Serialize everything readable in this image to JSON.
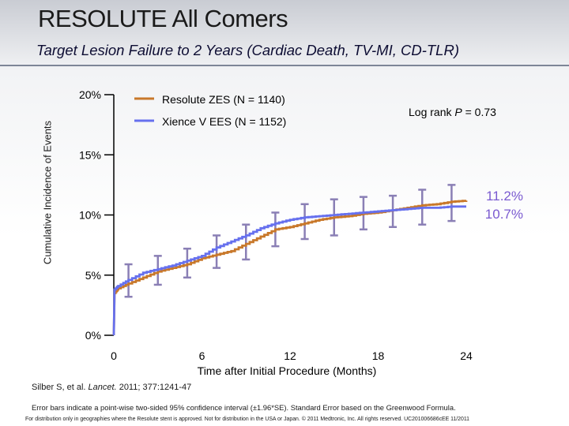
{
  "slide": {
    "title": "RESOLUTE All Comers",
    "subtitle": "Target Lesion Failure to 2 Years (Cardiac Death, TV-MI, CD-TLR)"
  },
  "chart_data": {
    "type": "line",
    "title": "Target Lesion Failure to 2 Years (Cardiac Death, TV-MI, CD-TLR)",
    "xlabel": "Time after Initial Procedure (Months)",
    "ylabel": "Cumulative Incidence of Events",
    "xlim": [
      0,
      24
    ],
    "ylim": [
      0,
      20
    ],
    "xticks": [
      0,
      6,
      12,
      18,
      24
    ],
    "xtick_labels": [
      "0",
      "6",
      "12",
      "18",
      "24"
    ],
    "yticks": [
      0,
      5,
      10,
      15,
      20
    ],
    "ytick_labels": [
      "0%",
      "5%",
      "10%",
      "15%",
      "20%"
    ],
    "grid": false,
    "legend_position": "top-left",
    "series": [
      {
        "name": "Resolute ZES (N = 1140)",
        "color": "#c8782a",
        "x": [
          0,
          0.05,
          0.3,
          1,
          2,
          3,
          4,
          5,
          6,
          7,
          8,
          9,
          10,
          11,
          12,
          13,
          14,
          15,
          16,
          17,
          18,
          19,
          20,
          21,
          22,
          23,
          24
        ],
        "values": [
          0,
          3.5,
          3.9,
          4.3,
          4.8,
          5.3,
          5.6,
          5.9,
          6.4,
          6.7,
          7.0,
          7.6,
          8.2,
          8.8,
          9.0,
          9.3,
          9.6,
          9.8,
          9.9,
          10.1,
          10.2,
          10.4,
          10.6,
          10.8,
          10.9,
          11.1,
          11.2
        ]
      },
      {
        "name": "Xience V EES (N = 1152)",
        "color": "#6670ee",
        "x": [
          0,
          0.05,
          0.3,
          1,
          2,
          3,
          4,
          5,
          6,
          7,
          8,
          9,
          10,
          11,
          12,
          13,
          14,
          15,
          16,
          17,
          18,
          19,
          20,
          21,
          22,
          23,
          24
        ],
        "values": [
          0,
          3.8,
          4.1,
          4.6,
          5.2,
          5.5,
          5.8,
          6.2,
          6.6,
          7.3,
          7.8,
          8.3,
          8.9,
          9.3,
          9.6,
          9.8,
          9.9,
          10.0,
          10.1,
          10.2,
          10.3,
          10.4,
          10.5,
          10.6,
          10.6,
          10.7,
          10.7
        ]
      }
    ],
    "error_bars": {
      "color": "#8a7fb5",
      "points": [
        {
          "x": 1,
          "low": 3.2,
          "high": 5.9
        },
        {
          "x": 3,
          "low": 4.2,
          "high": 6.6
        },
        {
          "x": 5,
          "low": 4.8,
          "high": 7.2
        },
        {
          "x": 7,
          "low": 5.6,
          "high": 8.3
        },
        {
          "x": 9,
          "low": 6.3,
          "high": 9.2
        },
        {
          "x": 11,
          "low": 7.4,
          "high": 10.2
        },
        {
          "x": 13,
          "low": 8.0,
          "high": 10.9
        },
        {
          "x": 15,
          "low": 8.3,
          "high": 11.3
        },
        {
          "x": 17,
          "low": 8.8,
          "high": 11.5
        },
        {
          "x": 19,
          "low": 9.0,
          "high": 11.6
        },
        {
          "x": 21,
          "low": 9.2,
          "high": 12.1
        },
        {
          "x": 23,
          "low": 9.5,
          "high": 12.5
        }
      ]
    },
    "annotations": {
      "log_rank_prefix": "Log rank ",
      "log_rank_italic": "P",
      "log_rank_suffix": " = 0.73",
      "end_value_resolute": "11.2%",
      "end_value_xience": "10.7%",
      "end_value_color": "#7a5ad0"
    }
  },
  "footer": {
    "citation_prefix": "Silber S, et al. ",
    "citation_journal": "Lancet.",
    "citation_suffix": " 2011; 377:1241-47",
    "error_bar_note": "Error bars indicate a point-wise two-sided 95% confidence interval (±1.96*SE). Standard Error based on the Greenwood Formula.",
    "disclaimer": "For distribution only in geographies where the Resolute stent is approved. Not for distribution in the USA or Japan. © 2011 Medtronic, Inc. All rights reserved. UC201006686cEE 11/2011"
  }
}
